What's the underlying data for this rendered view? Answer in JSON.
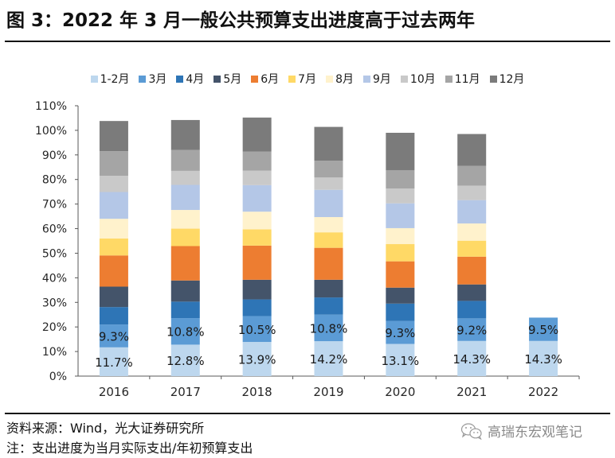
{
  "title": "图 3：2022 年 3 月一般公共预算支出进度高于过去两年",
  "footer": {
    "source": "资料来源：Wind，光大证券研究所",
    "note": "注：支出进度为当月实际支出/年初预算支出",
    "watermark": "高瑞东宏观笔记",
    "watermark_icon": "wechat-icon"
  },
  "chart_data": {
    "type": "bar",
    "stacked": true,
    "title": "",
    "xlabel": "",
    "ylabel": "",
    "ylim": [
      0,
      110
    ],
    "yticks": [
      0,
      10,
      20,
      30,
      40,
      50,
      60,
      70,
      80,
      90,
      100,
      110
    ],
    "ytick_format": "{v}%",
    "grid": false,
    "legend_position": "top",
    "categories": [
      "2016",
      "2017",
      "2018",
      "2019",
      "2020",
      "2021",
      "2022"
    ],
    "series": [
      {
        "name": "1-2月",
        "color": "#BDD7EE",
        "values": [
          11.7,
          12.8,
          13.9,
          14.2,
          13.1,
          14.3,
          14.3
        ],
        "labeled": true
      },
      {
        "name": "3月",
        "color": "#5B9BD5",
        "values": [
          9.3,
          10.8,
          10.5,
          10.8,
          9.3,
          9.2,
          9.5
        ],
        "labeled": true
      },
      {
        "name": "4月",
        "color": "#2E75B6",
        "values": [
          7.1,
          6.7,
          6.8,
          7.0,
          7.1,
          7.1,
          null
        ]
      },
      {
        "name": "5月",
        "color": "#44546A",
        "values": [
          8.3,
          8.6,
          8.0,
          7.2,
          6.5,
          6.7,
          null
        ]
      },
      {
        "name": "6月",
        "color": "#ED7D31",
        "values": [
          12.7,
          14.0,
          13.9,
          13.0,
          10.7,
          11.3,
          null
        ]
      },
      {
        "name": "7月",
        "color": "#FFD966",
        "values": [
          6.9,
          7.1,
          6.6,
          6.3,
          7.0,
          6.5,
          null
        ]
      },
      {
        "name": "8月",
        "color": "#FFF2CC",
        "values": [
          8.0,
          7.6,
          7.2,
          6.2,
          6.5,
          7.0,
          null
        ]
      },
      {
        "name": "9月",
        "color": "#B4C7E7",
        "values": [
          10.9,
          10.2,
          10.8,
          11.1,
          10.1,
          9.5,
          null
        ]
      },
      {
        "name": "10月",
        "color": "#C9C9C9",
        "values": [
          6.6,
          5.7,
          5.9,
          5.0,
          6.0,
          5.9,
          null
        ]
      },
      {
        "name": "11月",
        "color": "#A5A5A5",
        "values": [
          10.0,
          8.5,
          7.8,
          6.8,
          7.5,
          8.0,
          null
        ]
      },
      {
        "name": "12月",
        "color": "#7B7B7B",
        "values": [
          12.3,
          12.2,
          13.8,
          13.8,
          15.2,
          13.0,
          null
        ]
      }
    ]
  }
}
